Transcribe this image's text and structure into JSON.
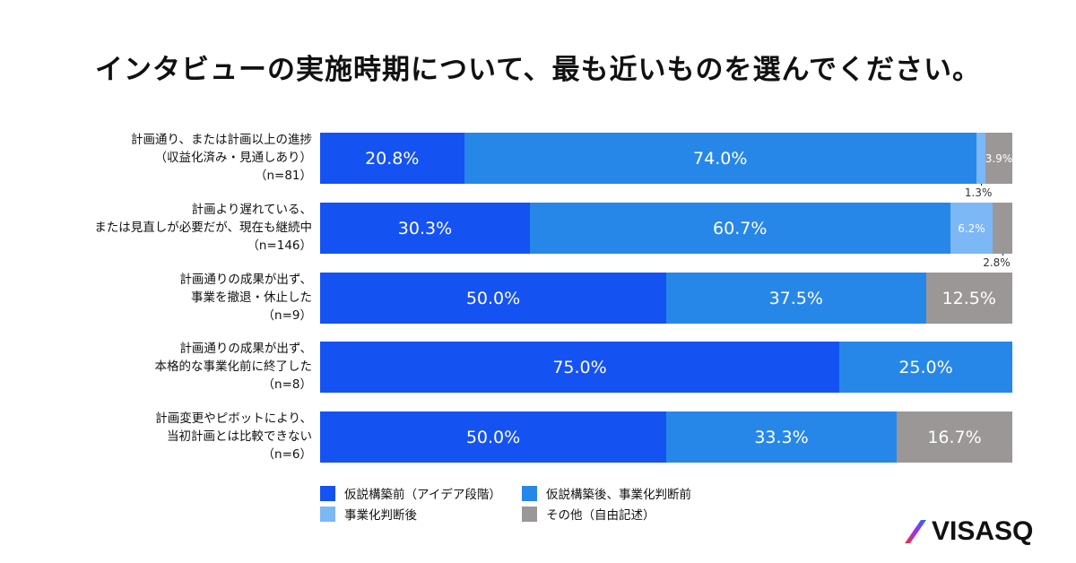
{
  "chart_data": {
    "type": "bar",
    "orientation": "horizontal-stacked-100",
    "title": "インタビューの実施時期について、最も近いものを選んでください。",
    "categories": [
      [
        "計画通り、または計画以上の進捗",
        "（収益化済み・見通しあり）",
        "（n=81）"
      ],
      [
        "計画より遅れている、",
        "または見直しが必要だが、現在も継続中",
        "（n=146）"
      ],
      [
        "計画通りの成果が出ず、",
        "事業を撤退・休止した",
        "（n=9）"
      ],
      [
        "計画通りの成果が出ず、",
        "本格的な事業化前に終了した",
        "（n=8）"
      ],
      [
        "計画変更やピボットにより、",
        "当初計画とは比較できない",
        "（n=6）"
      ]
    ],
    "series": [
      {
        "name": "仮説構築前（アイデア段階）",
        "color": "#1552f2",
        "values": [
          20.8,
          30.3,
          50.0,
          75.0,
          50.0
        ]
      },
      {
        "name": "仮説構築後、事業化判断前",
        "color": "#2787e8",
        "values": [
          74.0,
          60.7,
          37.5,
          25.0,
          33.3
        ]
      },
      {
        "name": "事業化判断後",
        "color": "#7cb7f6",
        "values": [
          1.3,
          6.2,
          0,
          0,
          0
        ]
      },
      {
        "name": "その他（自由記述）",
        "color": "#9b9797",
        "values": [
          3.9,
          2.8,
          12.5,
          0,
          16.7
        ]
      }
    ],
    "xlim": [
      0,
      100
    ],
    "legend": "bottom-left"
  },
  "brand": "VISASQ"
}
